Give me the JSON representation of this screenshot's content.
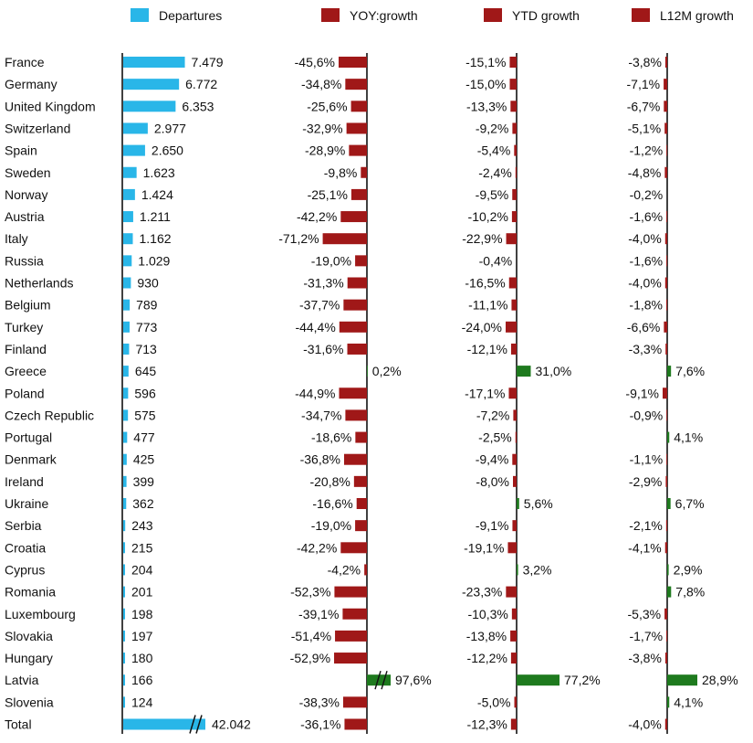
{
  "chart_data": {
    "type": "bar",
    "categories": [
      "France",
      "Germany",
      "United Kingdom",
      "Switzerland",
      "Spain",
      "Sweden",
      "Norway",
      "Austria",
      "Italy",
      "Russia",
      "Netherlands",
      "Belgium",
      "Turkey",
      "Finland",
      "Greece",
      "Poland",
      "Czech Republic",
      "Portugal",
      "Denmark",
      "Ireland",
      "Ukraine",
      "Serbia",
      "Croatia",
      "Cyprus",
      "Romania",
      "Luxembourg",
      "Slovakia",
      "Hungary",
      "Latvia",
      "Slovenia",
      "Total"
    ],
    "series": [
      {
        "name": "Departures",
        "color": "#29b6e8",
        "values": [
          7479,
          6772,
          6353,
          2977,
          2650,
          1623,
          1424,
          1211,
          1162,
          1029,
          930,
          789,
          773,
          713,
          645,
          596,
          575,
          477,
          425,
          399,
          362,
          243,
          215,
          204,
          201,
          198,
          197,
          180,
          166,
          124,
          42042
        ],
        "labels": [
          "7.479",
          "6.772",
          "6.353",
          "2.977",
          "2.650",
          "1.623",
          "1.424",
          "1.211",
          "1.162",
          "1.029",
          "930",
          "789",
          "773",
          "713",
          "645",
          "596",
          "575",
          "477",
          "425",
          "399",
          "362",
          "243",
          "215",
          "204",
          "201",
          "198",
          "197",
          "180",
          "166",
          "124",
          "42.042"
        ]
      },
      {
        "name": "YOY:growth",
        "color": "#a01818",
        "values": [
          -45.6,
          -34.8,
          -25.6,
          -32.9,
          -28.9,
          -9.8,
          -25.1,
          -42.2,
          -71.2,
          -19.0,
          -31.3,
          -37.7,
          -44.4,
          -31.6,
          0.2,
          -44.9,
          -34.7,
          -18.6,
          -36.8,
          -20.8,
          -16.6,
          -19.0,
          -42.2,
          -4.2,
          -52.3,
          -39.1,
          -51.4,
          -52.9,
          97.6,
          -38.3,
          -36.1
        ],
        "labels": [
          "-45,6%",
          "-34,8%",
          "-25,6%",
          "-32,9%",
          "-28,9%",
          "-9,8%",
          "-25,1%",
          "-42,2%",
          "-71,2%",
          "-19,0%",
          "-31,3%",
          "-37,7%",
          "-44,4%",
          "-31,6%",
          "0,2%",
          "-44,9%",
          "-34,7%",
          "-18,6%",
          "-36,8%",
          "-20,8%",
          "-16,6%",
          "-19,0%",
          "-42,2%",
          "-4,2%",
          "-52,3%",
          "-39,1%",
          "-51,4%",
          "-52,9%",
          "97,6%",
          "-38,3%",
          "-36,1%"
        ]
      },
      {
        "name": "YTD growth",
        "color": "#a01818",
        "values": [
          -15.1,
          -15.0,
          -13.3,
          -9.2,
          -5.4,
          -2.4,
          -9.5,
          -10.2,
          -22.9,
          -0.4,
          -16.5,
          -11.1,
          -24.0,
          -12.1,
          31.0,
          -17.1,
          -7.2,
          -2.5,
          -9.4,
          -8.0,
          5.6,
          -9.1,
          -19.1,
          3.2,
          -23.3,
          -10.3,
          -13.8,
          -12.2,
          77.2,
          -5.0,
          -12.3
        ],
        "labels": [
          "-15,1%",
          "-15,0%",
          "-13,3%",
          "-9,2%",
          "-5,4%",
          "-2,4%",
          "-9,5%",
          "-10,2%",
          "-22,9%",
          "-0,4%",
          "-16,5%",
          "-11,1%",
          "-24,0%",
          "-12,1%",
          "31,0%",
          "-17,1%",
          "-7,2%",
          "-2,5%",
          "-9,4%",
          "-8,0%",
          "5,6%",
          "-9,1%",
          "-19,1%",
          "3,2%",
          "-23,3%",
          "-10,3%",
          "-13,8%",
          "-12,2%",
          "77,2%",
          "-5,0%",
          "-12,3%"
        ]
      },
      {
        "name": "L12M growth",
        "color": "#a01818",
        "values": [
          -3.8,
          -7.1,
          -6.7,
          -5.1,
          -1.2,
          -4.8,
          -0.2,
          -1.6,
          -4.0,
          -1.6,
          -4.0,
          -1.8,
          -6.6,
          -3.3,
          7.6,
          -9.1,
          -0.9,
          4.1,
          -1.1,
          -2.9,
          6.7,
          -2.1,
          -4.1,
          2.9,
          7.8,
          -5.3,
          -1.7,
          -3.8,
          28.9,
          4.1,
          -4.0
        ],
        "labels": [
          "-3,8%",
          "-7,1%",
          "-6,7%",
          "-5,1%",
          "-1,2%",
          "-4,8%",
          "-0,2%",
          "-1,6%",
          "-4,0%",
          "-1,6%",
          "-4,0%",
          "-1,8%",
          "-6,6%",
          "-3,3%",
          "7,6%",
          "-9,1%",
          "-0,9%",
          "4,1%",
          "-1,1%",
          "-2,9%",
          "6,7%",
          "-2,1%",
          "-4,1%",
          "2,9%",
          "7,8%",
          "-5,3%",
          "-1,7%",
          "-3,8%",
          "28,9%",
          "4,1%",
          "-4,0%"
        ]
      }
    ],
    "positive_color": "#1e7a1e",
    "negative_color": "#a01818",
    "axis_breaks": [
      "Departures: Total",
      "YOY:growth: Latvia"
    ],
    "legend_position": "top",
    "grid": false
  }
}
